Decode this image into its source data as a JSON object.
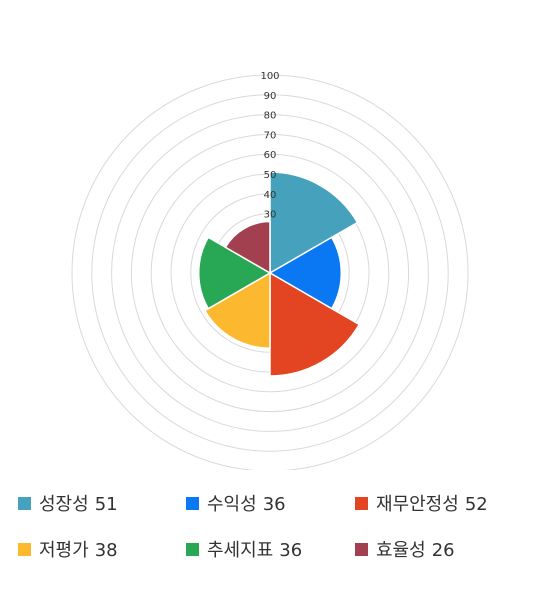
{
  "chart_data": {
    "type": "polar-area",
    "r_range": [
      0,
      100
    ],
    "r_ticks": [
      100,
      90,
      80,
      70,
      60,
      50,
      40,
      30
    ],
    "grid": true,
    "legend_position": "bottom",
    "categories": [
      "성장성",
      "수익성",
      "재무안정성",
      "저평가",
      "추세지표",
      "효율성"
    ],
    "values": [
      51,
      36,
      52,
      38,
      36,
      26
    ],
    "colors": [
      "#46a2bc",
      "#0a78f2",
      "#e34421",
      "#fcb930",
      "#28a854",
      "#a3404f"
    ]
  }
}
